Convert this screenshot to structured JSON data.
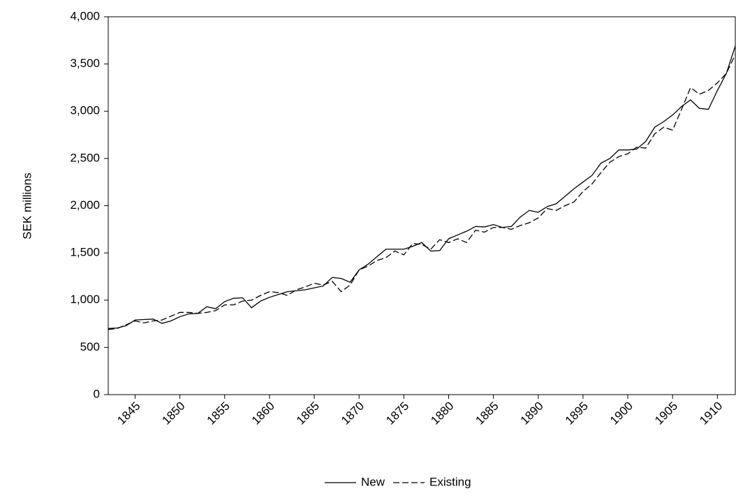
{
  "chart_data": {
    "type": "line",
    "y_label": "SEK millions",
    "x": [
      1842,
      1843,
      1844,
      1845,
      1846,
      1847,
      1848,
      1849,
      1850,
      1851,
      1852,
      1853,
      1854,
      1855,
      1856,
      1857,
      1858,
      1859,
      1860,
      1861,
      1862,
      1863,
      1864,
      1865,
      1866,
      1867,
      1868,
      1869,
      1870,
      1871,
      1872,
      1873,
      1874,
      1875,
      1876,
      1877,
      1878,
      1879,
      1880,
      1881,
      1882,
      1883,
      1884,
      1885,
      1886,
      1887,
      1888,
      1889,
      1890,
      1891,
      1892,
      1893,
      1894,
      1895,
      1896,
      1897,
      1898,
      1899,
      1900,
      1901,
      1902,
      1903,
      1904,
      1905,
      1906,
      1907,
      1908,
      1909,
      1910,
      1911,
      1912
    ],
    "series": [
      {
        "name": "New",
        "color": "#000000",
        "dash": false,
        "values": [
          700,
          705,
          730,
          790,
          795,
          800,
          755,
          780,
          825,
          855,
          860,
          930,
          910,
          985,
          1020,
          1025,
          920,
          990,
          1030,
          1060,
          1090,
          1100,
          1110,
          1130,
          1150,
          1240,
          1230,
          1190,
          1320,
          1380,
          1460,
          1540,
          1540,
          1540,
          1570,
          1610,
          1520,
          1525,
          1650,
          1690,
          1730,
          1780,
          1775,
          1800,
          1770,
          1780,
          1880,
          1950,
          1930,
          1990,
          2020,
          2100,
          2180,
          2250,
          2320,
          2450,
          2500,
          2590,
          2590,
          2600,
          2680,
          2830,
          2890,
          2960,
          3050,
          3120,
          3030,
          3020,
          3220,
          3400,
          3690
        ]
      },
      {
        "name": "Existing",
        "color": "#000000",
        "dash": true,
        "values": [
          690,
          700,
          740,
          780,
          760,
          780,
          790,
          830,
          870,
          870,
          860,
          870,
          890,
          950,
          950,
          990,
          1000,
          1050,
          1090,
          1080,
          1050,
          1110,
          1140,
          1180,
          1160,
          1200,
          1090,
          1160,
          1320,
          1360,
          1420,
          1450,
          1520,
          1480,
          1600,
          1590,
          1540,
          1640,
          1610,
          1650,
          1610,
          1740,
          1720,
          1770,
          1770,
          1750,
          1790,
          1820,
          1870,
          1970,
          1950,
          2000,
          2040,
          2150,
          2230,
          2350,
          2460,
          2520,
          2550,
          2620,
          2610,
          2760,
          2830,
          2800,
          3020,
          3250,
          3180,
          3220,
          3300,
          3400,
          3600
        ]
      }
    ],
    "xlim": [
      1842,
      1912
    ],
    "xticks": [
      1845,
      1850,
      1855,
      1860,
      1865,
      1870,
      1875,
      1880,
      1885,
      1890,
      1895,
      1900,
      1905,
      1910
    ],
    "ylim": [
      0,
      4000
    ],
    "yticks": [
      0,
      500,
      {
        "value": 1000,
        "label": "1,000"
      },
      {
        "value": 1500,
        "label": "1,500"
      },
      {
        "value": 2000,
        "label": "2,000"
      },
      {
        "value": 2500,
        "label": "2,500"
      },
      {
        "value": 3000,
        "label": "3,000"
      },
      {
        "value": 3500,
        "label": "3,500"
      },
      {
        "value": 4000,
        "label": "4,000"
      }
    ],
    "legend": "bottom"
  }
}
